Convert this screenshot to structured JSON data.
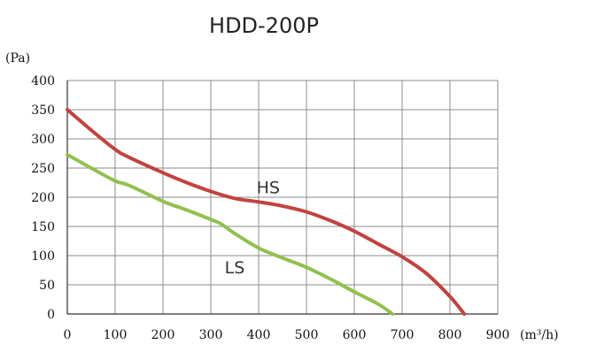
{
  "chart_data": {
    "type": "line",
    "title": "HDD-200P",
    "ylabel": "(Pa)",
    "xlabel": "(m³/h)",
    "xlim": [
      0,
      900
    ],
    "ylim": [
      0,
      400
    ],
    "x_ticks": [
      "0",
      "100",
      "200",
      "300",
      "400",
      "500",
      "600",
      "700",
      "800",
      "900"
    ],
    "y_ticks": [
      "0",
      "50",
      "100",
      "150",
      "200",
      "250",
      "300",
      "350",
      "400"
    ],
    "grid": true,
    "series": [
      {
        "name": "HS",
        "color": "#c0433f",
        "points": [
          [
            0,
            350
          ],
          [
            50,
            315
          ],
          [
            100,
            282
          ],
          [
            130,
            268
          ],
          [
            200,
            242
          ],
          [
            250,
            225
          ],
          [
            300,
            210
          ],
          [
            350,
            198
          ],
          [
            400,
            192
          ],
          [
            450,
            185
          ],
          [
            500,
            175
          ],
          [
            550,
            160
          ],
          [
            600,
            142
          ],
          [
            650,
            120
          ],
          [
            700,
            98
          ],
          [
            750,
            70
          ],
          [
            800,
            30
          ],
          [
            830,
            0
          ]
        ]
      },
      {
        "name": "LS",
        "color": "#92c050",
        "points": [
          [
            0,
            273
          ],
          [
            50,
            250
          ],
          [
            100,
            228
          ],
          [
            130,
            220
          ],
          [
            200,
            193
          ],
          [
            250,
            178
          ],
          [
            300,
            162
          ],
          [
            320,
            155
          ],
          [
            350,
            138
          ],
          [
            400,
            113
          ],
          [
            450,
            96
          ],
          [
            500,
            80
          ],
          [
            550,
            60
          ],
          [
            600,
            38
          ],
          [
            650,
            17
          ],
          [
            680,
            0
          ]
        ]
      }
    ]
  }
}
